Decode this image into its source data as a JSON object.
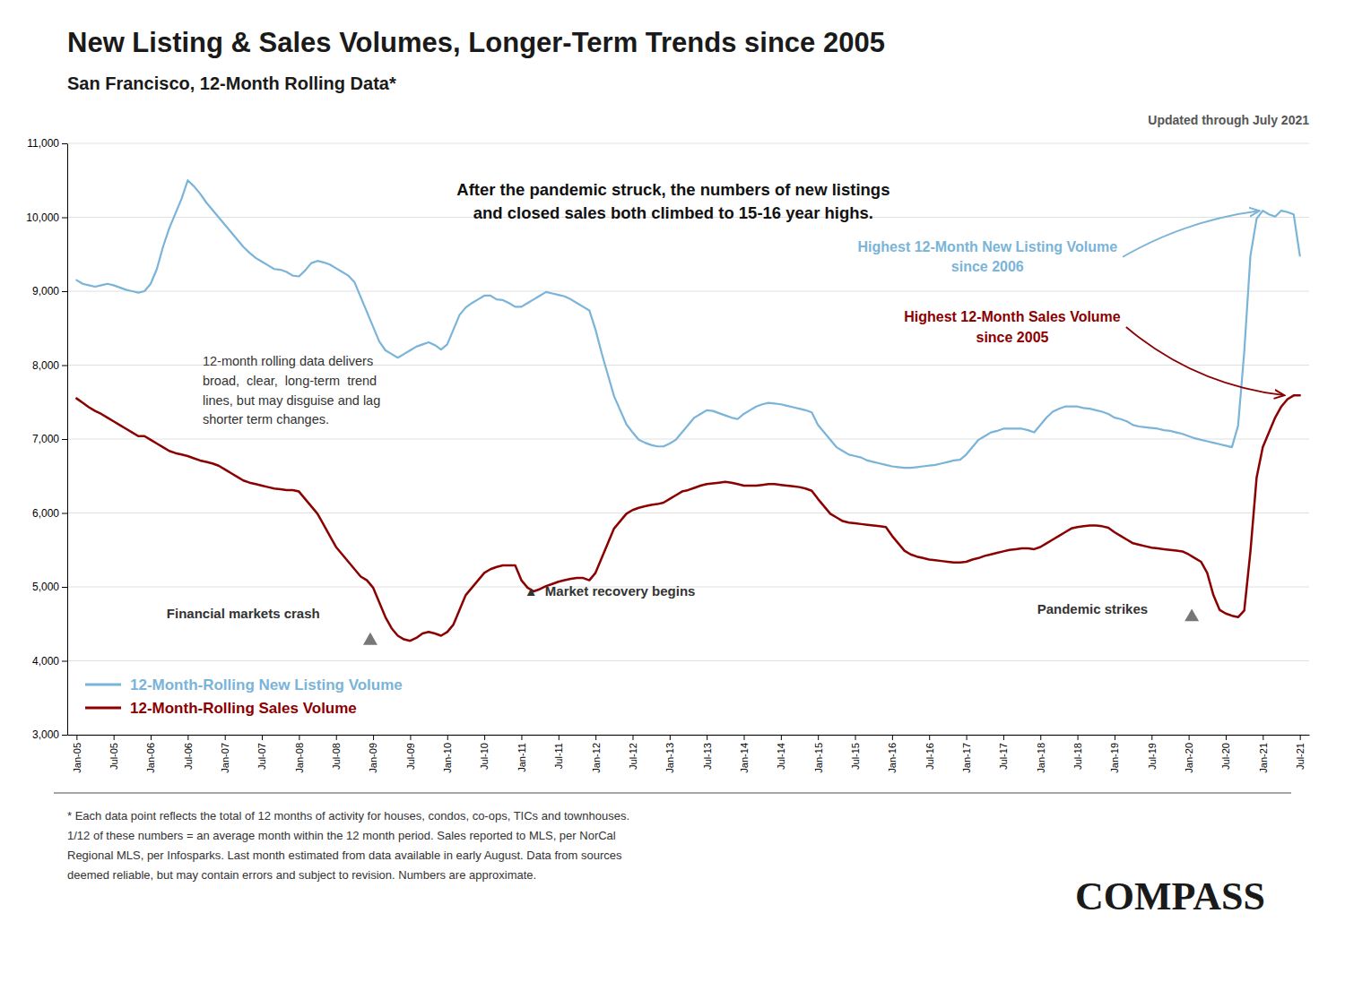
{
  "chart_data": {
    "type": "line",
    "title": "New Listing & Sales Volumes, Longer-Term Trends since 2005",
    "subtitle": "San Francisco, 12-Month Rolling Data*",
    "annotations": [
      "After the pandemic struck, the numbers of new listings\nand closed sales both climbed to 15-16 year highs.",
      "Highest 12-Month New Listing Volume\nsince 2006",
      "Highest 12-Month Sales Volume\nsince 2005",
      "12-month rolling data delivers\nbroad,  clear,  long-term  trend\nlines, but may disguise and lag\nshorter term changes.",
      "Financial markets crash ",
      "▲  Market recovery begins",
      "Pandemic strikes ",
      "Updated through July 2021",
      "* Each data point reflects the total of 12 months of activity for houses, condos, co-ops, TICs and townhouses.\n1/12 of these numbers = an average month within the 12 month period. Sales reported to MLS, per NorCal\nRegional MLS, per Infosparks. Last month estimated from data available in early August. Data from sources\ndeemed reliable, but may contain errors and subject to revision. Numbers are approximate.",
      "COMPASS"
    ],
    "categories": [
      "Jan-05",
      null,
      null,
      null,
      null,
      null,
      "Jul-05",
      null,
      null,
      null,
      null,
      null,
      "Jan-06",
      null,
      null,
      null,
      null,
      null,
      "Jul-06",
      null,
      null,
      null,
      null,
      null,
      "Jan-07",
      null,
      null,
      null,
      null,
      null,
      "Jul-07",
      null,
      null,
      null,
      null,
      null,
      "Jan-08",
      null,
      null,
      null,
      null,
      null,
      "Jul-08",
      null,
      null,
      null,
      null,
      null,
      "Jan-09",
      null,
      null,
      null,
      null,
      null,
      "Jul-09",
      null,
      null,
      null,
      null,
      null,
      "Jan-10",
      null,
      null,
      null,
      null,
      null,
      "Jul-10",
      null,
      null,
      null,
      null,
      null,
      "Jan-11",
      null,
      null,
      null,
      null,
      null,
      "Jul-11",
      null,
      null,
      null,
      null,
      null,
      "Jan-12",
      null,
      null,
      null,
      null,
      null,
      "Jul-12",
      null,
      null,
      null,
      null,
      null,
      "Jan-13",
      null,
      null,
      null,
      null,
      null,
      "Jul-13",
      null,
      null,
      null,
      null,
      null,
      "Jan-14",
      null,
      null,
      null,
      null,
      null,
      "Jul-14",
      null,
      null,
      null,
      null,
      null,
      "Jan-15",
      null,
      null,
      null,
      null,
      null,
      "Jul-15",
      null,
      null,
      null,
      null,
      null,
      "Jan-16",
      null,
      null,
      null,
      null,
      null,
      "Jul-16",
      null,
      null,
      null,
      null,
      null,
      "Jan-17",
      null,
      null,
      null,
      null,
      null,
      "Jul-17",
      null,
      null,
      null,
      null,
      null,
      "Jan-18",
      null,
      null,
      null,
      null,
      null,
      "Jul-18",
      null,
      null,
      null,
      null,
      null,
      "Jan-19",
      null,
      null,
      null,
      null,
      null,
      "Jul-19",
      null,
      null,
      null,
      null,
      null,
      "Jan-20",
      null,
      null,
      null,
      null,
      null,
      "Jul-20",
      null,
      null,
      null,
      null,
      null,
      "Jan-21",
      null,
      null,
      null,
      null,
      null,
      "Jul-21"
    ],
    "series": [
      {
        "name": "12-Month-Rolling New Listing Volume",
        "color": "#7ab4d8",
        "values": [
          9150,
          9100,
          9080,
          9060,
          9080,
          9100,
          9080,
          9050,
          9020,
          9000,
          8980,
          9000,
          9100,
          9300,
          9600,
          9850,
          10050,
          10250,
          10500,
          10420,
          10320,
          10200,
          10100,
          10000,
          9900,
          9800,
          9700,
          9600,
          9520,
          9450,
          9400,
          9350,
          9300,
          9290,
          9260,
          9210,
          9200,
          9280,
          9380,
          9410,
          9390,
          9360,
          9310,
          9260,
          9210,
          9120,
          8920,
          8720,
          8520,
          8320,
          8200,
          8150,
          8100,
          8150,
          8200,
          8250,
          8280,
          8310,
          8270,
          8210,
          8280,
          8480,
          8680,
          8780,
          8840,
          8890,
          8940,
          8940,
          8890,
          8880,
          8840,
          8790,
          8790,
          8840,
          8890,
          8940,
          8990,
          8970,
          8950,
          8930,
          8890,
          8840,
          8790,
          8740,
          8480,
          8160,
          7870,
          7580,
          7390,
          7200,
          7090,
          6990,
          6950,
          6920,
          6900,
          6900,
          6940,
          6990,
          7090,
          7190,
          7290,
          7340,
          7390,
          7380,
          7350,
          7320,
          7290,
          7270,
          7340,
          7390,
          7440,
          7470,
          7490,
          7480,
          7470,
          7450,
          7430,
          7410,
          7390,
          7360,
          7190,
          7090,
          6990,
          6890,
          6840,
          6790,
          6770,
          6750,
          6710,
          6690,
          6670,
          6650,
          6630,
          6620,
          6610,
          6610,
          6620,
          6630,
          6640,
          6650,
          6670,
          6690,
          6710,
          6720,
          6790,
          6890,
          6990,
          7040,
          7090,
          7110,
          7140,
          7140,
          7140,
          7140,
          7120,
          7090,
          7190,
          7290,
          7370,
          7410,
          7440,
          7440,
          7440,
          7420,
          7410,
          7390,
          7370,
          7340,
          7290,
          7270,
          7240,
          7190,
          7170,
          7160,
          7150,
          7140,
          7120,
          7110,
          7090,
          7070,
          7040,
          7010,
          6990,
          6970,
          6950,
          6930,
          6910,
          6890,
          7180,
          8180,
          9480,
          9980,
          10090,
          10040,
          10010,
          10090,
          10070,
          10040,
          9480
        ]
      },
      {
        "name": "12-Month-Rolling Sales Volume",
        "color": "#8b0000",
        "values": [
          7550,
          7490,
          7430,
          7380,
          7340,
          7290,
          7240,
          7190,
          7140,
          7090,
          7040,
          7040,
          6990,
          6940,
          6890,
          6840,
          6810,
          6790,
          6770,
          6740,
          6710,
          6690,
          6670,
          6640,
          6590,
          6540,
          6490,
          6440,
          6410,
          6390,
          6370,
          6350,
          6330,
          6320,
          6310,
          6310,
          6290,
          6190,
          6090,
          5990,
          5840,
          5690,
          5540,
          5440,
          5340,
          5240,
          5140,
          5090,
          4990,
          4790,
          4590,
          4440,
          4340,
          4290,
          4270,
          4310,
          4370,
          4390,
          4370,
          4340,
          4390,
          4490,
          4690,
          4890,
          4990,
          5090,
          5190,
          5240,
          5270,
          5290,
          5290,
          5290,
          5090,
          4990,
          4940,
          4970,
          5010,
          5040,
          5070,
          5090,
          5110,
          5120,
          5120,
          5090,
          5190,
          5390,
          5590,
          5790,
          5890,
          5990,
          6040,
          6070,
          6090,
          6110,
          6120,
          6140,
          6190,
          6240,
          6290,
          6310,
          6340,
          6370,
          6390,
          6400,
          6410,
          6420,
          6410,
          6390,
          6370,
          6370,
          6370,
          6380,
          6390,
          6390,
          6380,
          6370,
          6360,
          6350,
          6330,
          6300,
          6190,
          6090,
          5990,
          5940,
          5890,
          5870,
          5860,
          5850,
          5840,
          5830,
          5820,
          5810,
          5690,
          5590,
          5490,
          5440,
          5410,
          5390,
          5370,
          5360,
          5350,
          5340,
          5330,
          5330,
          5340,
          5370,
          5390,
          5420,
          5440,
          5460,
          5480,
          5500,
          5510,
          5520,
          5520,
          5510,
          5540,
          5590,
          5640,
          5690,
          5740,
          5790,
          5810,
          5820,
          5830,
          5830,
          5820,
          5800,
          5740,
          5690,
          5640,
          5590,
          5570,
          5550,
          5530,
          5520,
          5510,
          5500,
          5490,
          5480,
          5440,
          5390,
          5340,
          5190,
          4890,
          4690,
          4640,
          4610,
          4590,
          4680,
          5480,
          6480,
          6890,
          7090,
          7290,
          7440,
          7540,
          7590,
          7590
        ]
      }
    ],
    "ylim": [
      3000,
      11000
    ],
    "yticks": [
      {
        "value": 3000,
        "label": "3,000"
      },
      {
        "value": 4000,
        "label": "4,000"
      },
      {
        "value": 5000,
        "label": "5,000"
      },
      {
        "value": 6000,
        "label": "6,000"
      },
      {
        "value": 7000,
        "label": "7,000"
      },
      {
        "value": 8000,
        "label": "8,000"
      },
      {
        "value": 9000,
        "label": "9,000"
      },
      {
        "value": 10000,
        "label": "10,000"
      },
      {
        "value": 11000,
        "label": "11,000"
      }
    ],
    "grid": true,
    "legend": "lower left"
  }
}
